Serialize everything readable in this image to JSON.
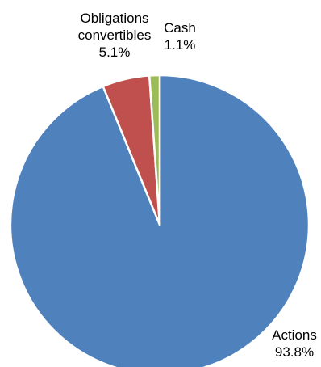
{
  "chart_data": {
    "type": "pie",
    "slices": [
      {
        "label_lines": [
          "Actions"
        ],
        "value": 93.8,
        "value_label": "93.8%",
        "color": "#4F81BD"
      },
      {
        "label_lines": [
          "Obligations",
          "convertibles"
        ],
        "value": 5.1,
        "value_label": "5.1%",
        "color": "#C0504D"
      },
      {
        "label_lines": [
          "Cash"
        ],
        "value": 1.1,
        "value_label": "1.1%",
        "color": "#9BBB59"
      }
    ],
    "start_angle_deg": 0,
    "direction": "clockwise",
    "legend": "none",
    "data_labels": "outside"
  }
}
